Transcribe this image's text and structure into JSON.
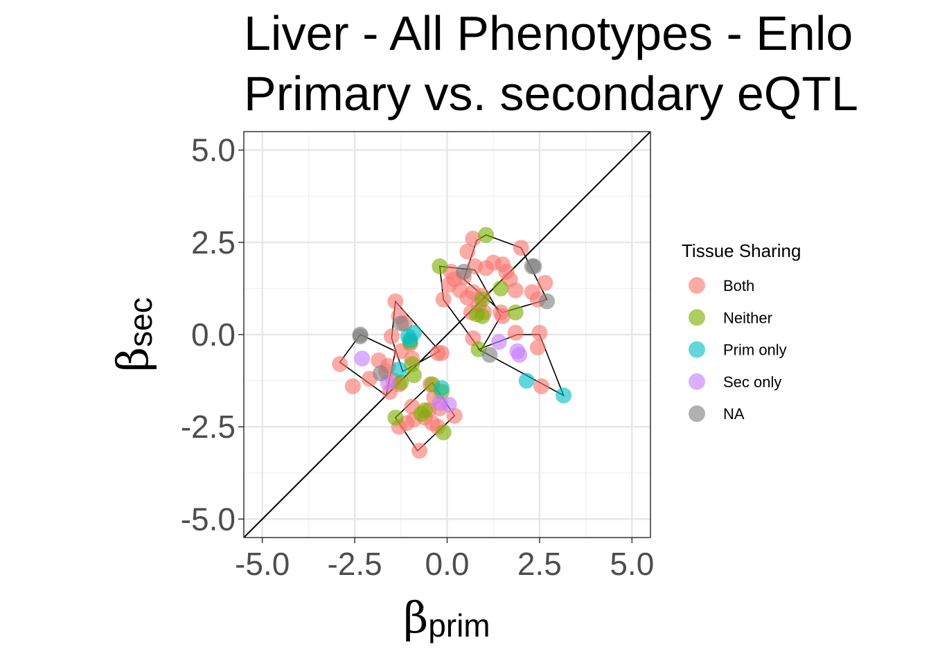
{
  "chart_data": {
    "type": "scatter",
    "title": [
      "Liver - All Phenotypes - Enlo",
      "Primary vs. secondary eQTL"
    ],
    "xlabel": {
      "symbol": "β",
      "subscript": "prim"
    },
    "ylabel": {
      "symbol": "β",
      "subscript": "sec"
    },
    "xlim": [
      -5.5,
      5.5
    ],
    "ylim": [
      -5.5,
      5.5
    ],
    "xticks": [
      -5.0,
      -2.5,
      0.0,
      2.5,
      5.0
    ],
    "xtick_labels": [
      "-5.0",
      "-2.5",
      "0.0",
      "2.5",
      "5.0"
    ],
    "yticks": [
      5.0,
      2.5,
      0.0,
      -2.5,
      -5.0
    ],
    "ytick_labels": [
      "5.0",
      "2.5",
      "0.0",
      "-2.5",
      "-5.0"
    ],
    "grid": true,
    "reference_line": "y = x",
    "legend": {
      "title": "Tissue Sharing",
      "position": "right",
      "entries": [
        {
          "label": "Both",
          "color": "#F8766D"
        },
        {
          "label": "Neither",
          "color": "#7CAE00"
        },
        {
          "label": "Prim only",
          "color": "#00BFC4"
        },
        {
          "label": "Sec only",
          "color": "#C77CFF"
        },
        {
          "label": "NA",
          "color": "#7F7F7F"
        }
      ]
    },
    "series": [
      {
        "name": "Both",
        "color": "#F8766D",
        "points": [
          [
            0.7,
            2.6
          ],
          [
            0.55,
            2.25
          ],
          [
            2.0,
            2.35
          ],
          [
            1.25,
            1.95
          ],
          [
            1.5,
            1.9
          ],
          [
            1.6,
            1.7
          ],
          [
            0.75,
            1.85
          ],
          [
            1.05,
            1.8
          ],
          [
            0.1,
            1.7
          ],
          [
            0.2,
            1.5
          ],
          [
            0.45,
            1.55
          ],
          [
            0.05,
            1.35
          ],
          [
            0.35,
            1.2
          ],
          [
            0.7,
            1.15
          ],
          [
            0.95,
            1.05
          ],
          [
            1.7,
            1.5
          ],
          [
            1.85,
            1.2
          ],
          [
            2.3,
            1.15
          ],
          [
            2.65,
            1.4
          ],
          [
            2.45,
            0.95
          ],
          [
            0.55,
            1.0
          ],
          [
            0.85,
            0.8
          ],
          [
            0.65,
            0.6
          ],
          [
            1.0,
            0.6
          ],
          [
            1.45,
            0.6
          ],
          [
            -0.1,
            0.95
          ],
          [
            0.7,
            -0.1
          ],
          [
            1.5,
            0.5
          ],
          [
            1.85,
            0.05
          ],
          [
            2.45,
            -0.35
          ],
          [
            2.5,
            0.05
          ],
          [
            2.55,
            -1.4
          ],
          [
            -1.4,
            0.9
          ],
          [
            -1.3,
            0.5
          ],
          [
            -1.15,
            0.3
          ],
          [
            -1.5,
            -0.05
          ],
          [
            -1.0,
            -0.25
          ],
          [
            -1.25,
            -0.45
          ],
          [
            -0.95,
            -0.65
          ],
          [
            -0.25,
            -0.5
          ],
          [
            -0.15,
            -0.5
          ],
          [
            -1.85,
            -0.7
          ],
          [
            -1.6,
            -0.85
          ],
          [
            -2.9,
            -0.8
          ],
          [
            -2.55,
            -1.4
          ],
          [
            -2.1,
            -1.2
          ],
          [
            -1.65,
            -1.0
          ],
          [
            -1.45,
            -1.25
          ],
          [
            -1.55,
            -1.55
          ],
          [
            -1.3,
            -1.35
          ],
          [
            -0.45,
            -1.35
          ],
          [
            -0.35,
            -1.7
          ],
          [
            -0.95,
            -1.95
          ],
          [
            -0.5,
            -2.05
          ],
          [
            -0.6,
            -2.25
          ],
          [
            -0.9,
            -2.3
          ],
          [
            -1.3,
            -2.5
          ],
          [
            -1.1,
            -2.4
          ],
          [
            -0.4,
            -2.4
          ],
          [
            0.2,
            -2.2
          ],
          [
            -0.25,
            -2.5
          ],
          [
            -0.75,
            -3.15
          ],
          [
            -0.2,
            -2.0
          ]
        ]
      },
      {
        "name": "Neither",
        "color": "#7CAE00",
        "points": [
          [
            1.05,
            2.7
          ],
          [
            -0.2,
            1.85
          ],
          [
            0.95,
            0.95
          ],
          [
            1.45,
            1.25
          ],
          [
            1.85,
            0.6
          ],
          [
            0.8,
            0.55
          ],
          [
            0.95,
            0.5
          ],
          [
            0.85,
            -0.4
          ],
          [
            -0.95,
            -0.8
          ],
          [
            -0.9,
            -1.1
          ],
          [
            -1.25,
            -1.3
          ],
          [
            -1.0,
            -0.2
          ],
          [
            -0.4,
            -1.35
          ],
          [
            -0.15,
            -1.55
          ],
          [
            -1.4,
            -2.25
          ],
          [
            -0.7,
            -2.15
          ],
          [
            -0.6,
            -2.05
          ],
          [
            -0.1,
            -2.65
          ]
        ]
      },
      {
        "name": "Prim only",
        "color": "#00BFC4",
        "points": [
          [
            -0.9,
            0.05
          ],
          [
            -1.05,
            -0.05
          ],
          [
            -1.0,
            -0.15
          ],
          [
            -1.3,
            -0.95
          ],
          [
            -0.15,
            -1.45
          ],
          [
            2.15,
            -1.25
          ],
          [
            3.15,
            -1.65
          ]
        ]
      },
      {
        "name": "Sec only",
        "color": "#C77CFF",
        "points": [
          [
            1.4,
            -0.2
          ],
          [
            1.9,
            -0.45
          ],
          [
            1.95,
            -0.55
          ],
          [
            -2.3,
            -0.65
          ],
          [
            -1.6,
            -1.3
          ],
          [
            -0.2,
            -1.85
          ],
          [
            0.05,
            -1.9
          ]
        ]
      },
      {
        "name": "NA",
        "color": "#7F7F7F",
        "points": [
          [
            -1.25,
            0.3
          ],
          [
            -2.35,
            0.0
          ],
          [
            -2.35,
            -0.05
          ],
          [
            -1.8,
            -1.05
          ],
          [
            0.45,
            1.7
          ],
          [
            2.3,
            1.85
          ],
          [
            2.35,
            1.85
          ],
          [
            2.7,
            0.9
          ],
          [
            1.15,
            -0.55
          ]
        ]
      }
    ],
    "hulls": [
      [
        [
          -2.35,
          0.0
        ],
        [
          -1.4,
          -0.45
        ],
        [
          -1.65,
          -1.65
        ],
        [
          -2.9,
          -0.75
        ]
      ],
      [
        [
          -1.4,
          0.9
        ],
        [
          -0.2,
          -0.45
        ],
        [
          -1.2,
          -1.0
        ],
        [
          -1.5,
          -0.1
        ]
      ],
      [
        [
          -0.4,
          -1.3
        ],
        [
          0.2,
          -2.2
        ],
        [
          -0.8,
          -3.15
        ],
        [
          -1.4,
          -2.25
        ]
      ],
      [
        [
          -0.2,
          1.85
        ],
        [
          0.75,
          1.75
        ],
        [
          1.45,
          0.5
        ],
        [
          0.9,
          -0.45
        ],
        [
          0.7,
          -0.15
        ],
        [
          -0.1,
          0.95
        ]
      ],
      [
        [
          1.05,
          2.7
        ],
        [
          2.0,
          2.35
        ],
        [
          2.7,
          0.95
        ],
        [
          1.5,
          0.6
        ],
        [
          0.45,
          1.5
        ],
        [
          0.8,
          2.55
        ]
      ],
      [
        [
          0.85,
          -0.4
        ],
        [
          1.9,
          0.0
        ],
        [
          2.5,
          0.0
        ],
        [
          3.15,
          -1.65
        ]
      ]
    ]
  }
}
